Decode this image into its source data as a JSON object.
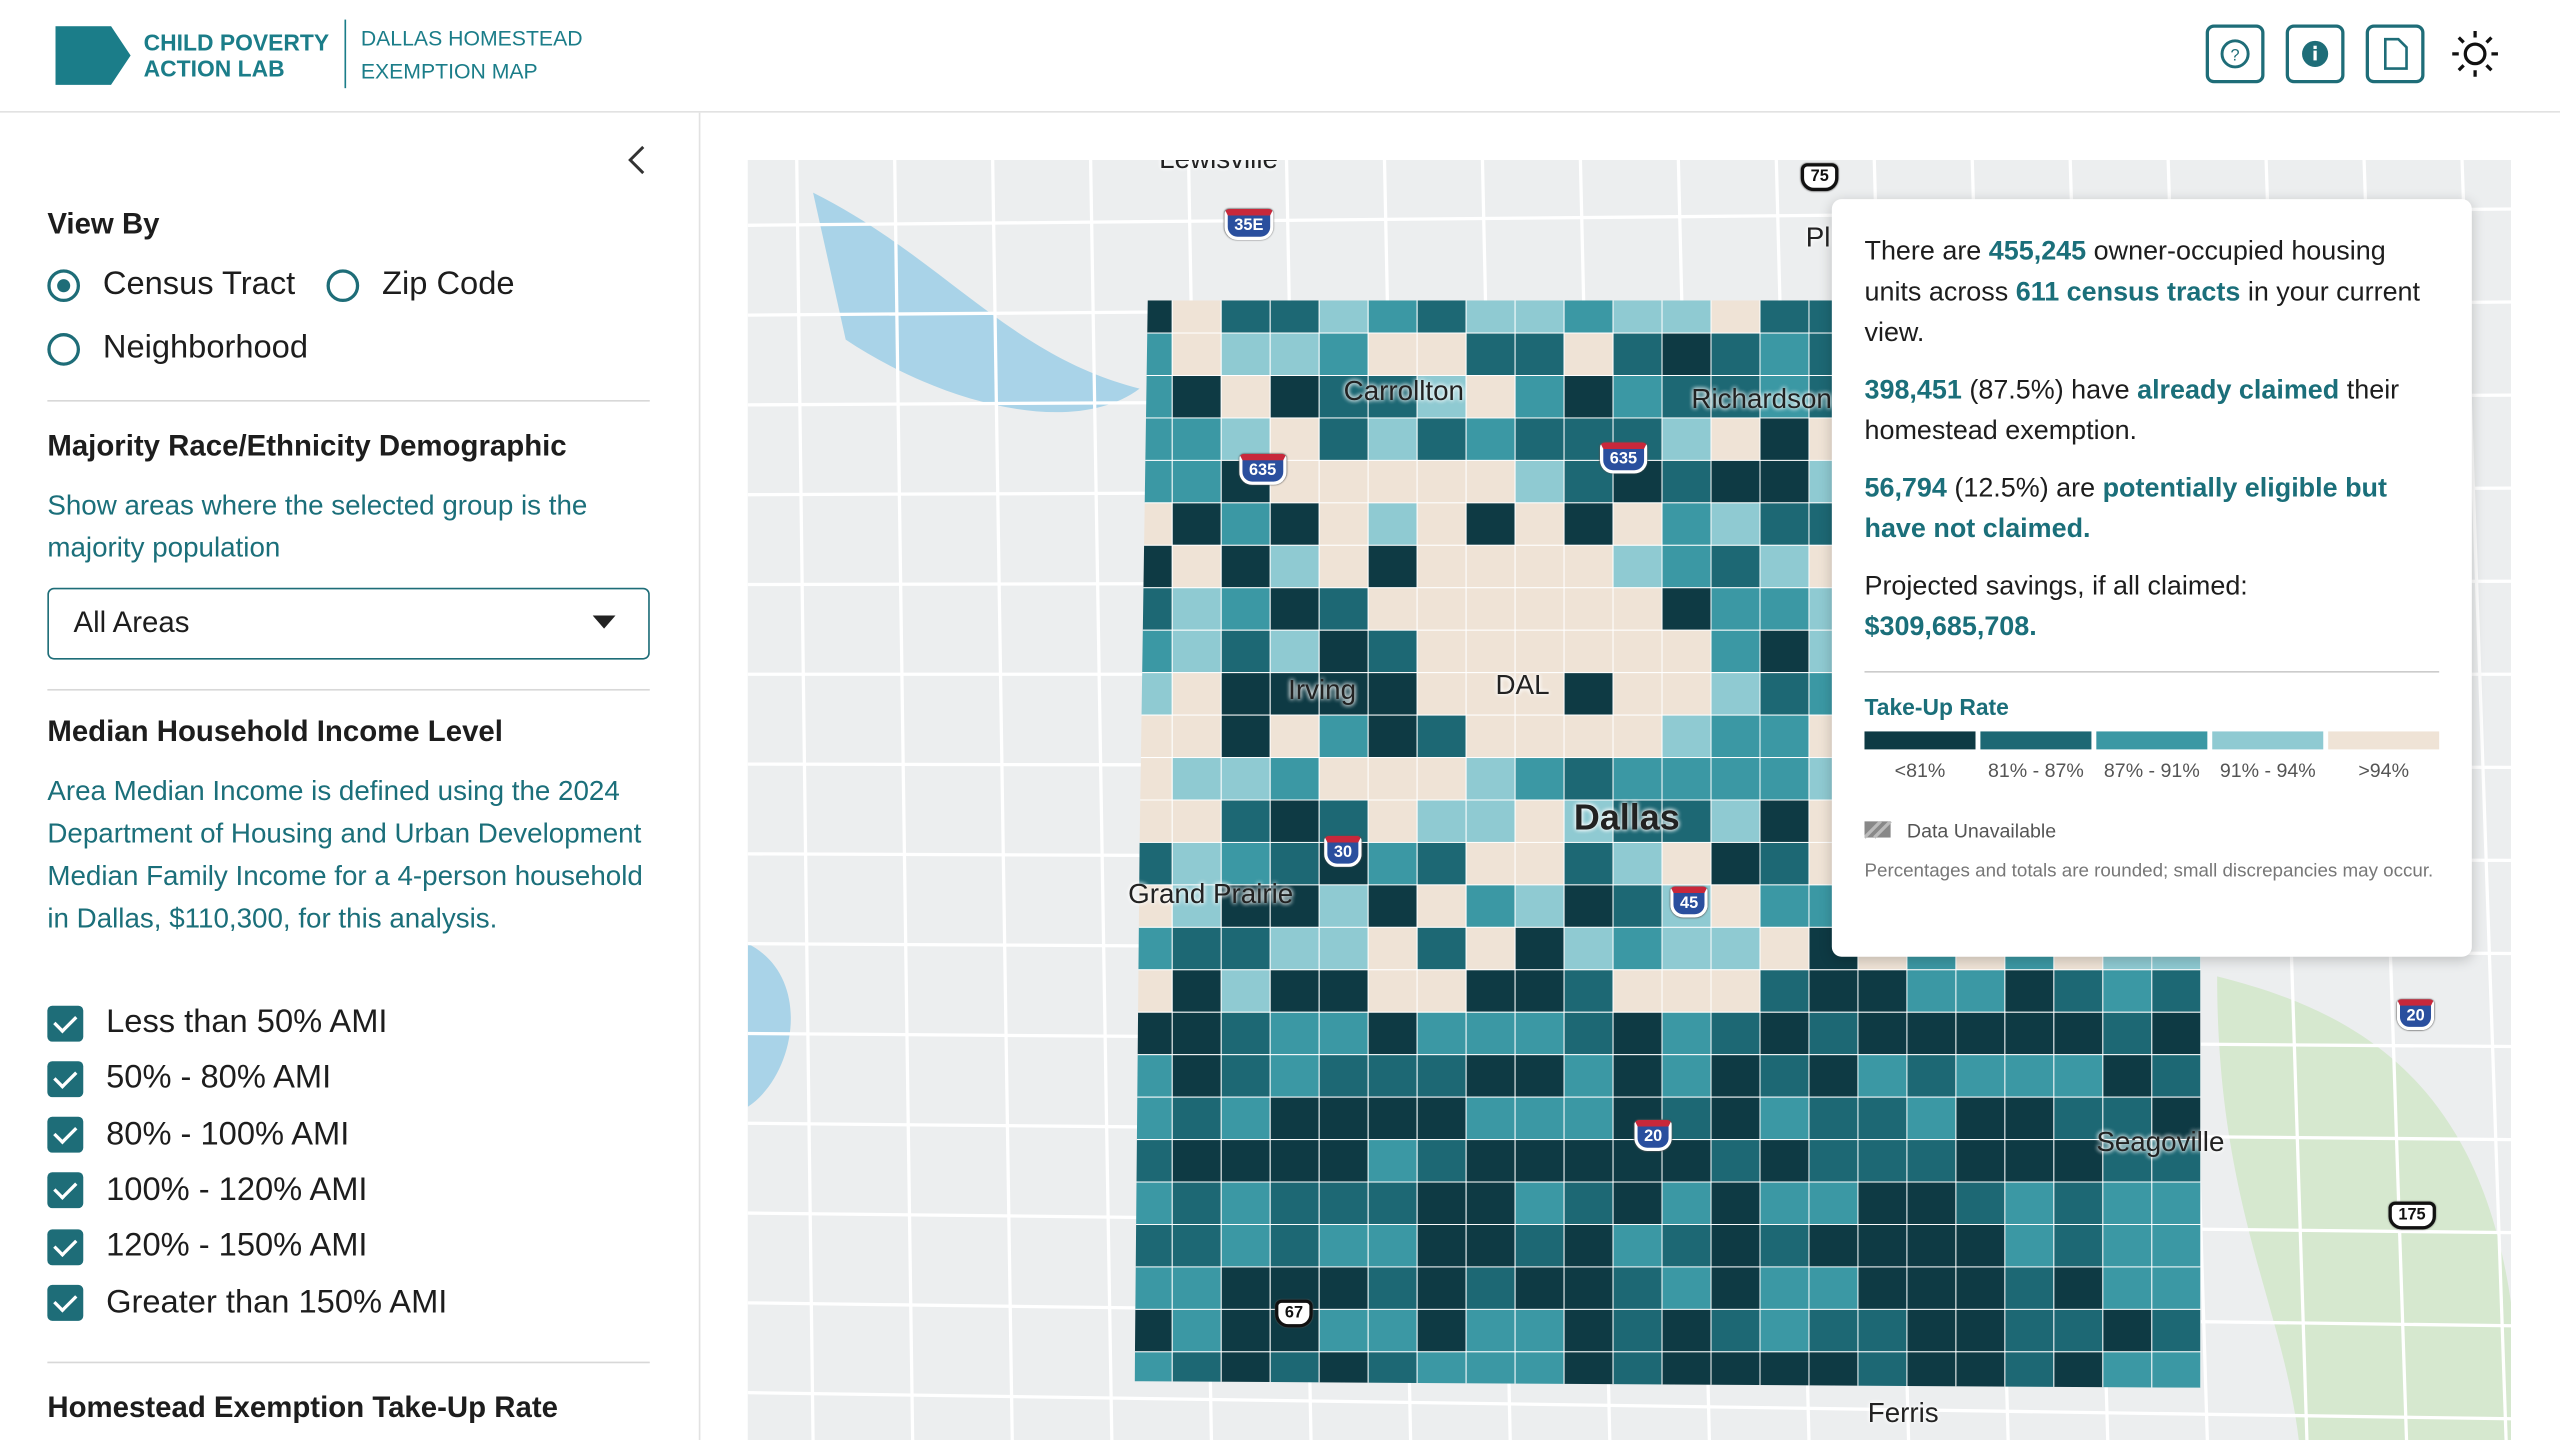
{
  "header": {
    "logo_line1": "CHILD POVERTY",
    "logo_line2": "ACTION LAB",
    "app_title_line1": "DALLAS HOMESTEAD",
    "app_title_line2": "EXEMPTION MAP"
  },
  "sidebar": {
    "view_by": {
      "title": "View By",
      "options": [
        "Census Tract",
        "Zip Code",
        "Neighborhood"
      ]
    },
    "race": {
      "title": "Majority Race/Ethnicity Demographic",
      "description": "Show areas where the selected group is the majority population",
      "dropdown": "All Areas"
    },
    "income": {
      "title": "Median Household Income Level",
      "description": "Area Median Income is defined using the 2024 Department of Housing and Urban Development Median Family Income for a 4-person household in Dallas, $110,300, for this analysis.",
      "options": [
        "Less than 50% AMI",
        "50% - 80% AMI",
        "80% - 100% AMI",
        "100% - 120% AMI",
        "120% - 150% AMI",
        "Greater than 150% AMI"
      ]
    },
    "takeup": {
      "title": "Homestead Exemption Take-Up Rate"
    }
  },
  "map": {
    "places": [
      "Lewisville",
      "Carrollton",
      "Richardson",
      "Irving",
      "DAL",
      "Dallas",
      "Grand Prairie",
      "Seagoville",
      "Ferris",
      "Pl"
    ],
    "highways": [
      "35E",
      "635",
      "635",
      "30",
      "45",
      "20",
      "67",
      "75",
      "20",
      "175"
    ]
  },
  "popup": {
    "p1": [
      "There are ",
      "455,245",
      " owner-occupied housing units across ",
      "611 census tracts",
      " in your current view."
    ],
    "p2": [
      "398,451",
      " (87.5%) have ",
      "already claimed",
      " their homestead exemption."
    ],
    "p3": [
      "56,794",
      " (12.5%) are ",
      "potentially eligible but have not claimed."
    ],
    "p4": [
      "Projected savings, if all claimed:",
      "$309,685,708."
    ],
    "legend": {
      "title": "Take-Up Rate",
      "bins": [
        {
          "label": "<81%",
          "color": "#0e3a44"
        },
        {
          "label": "81% - 87%",
          "color": "#1d6874"
        },
        {
          "label": "87% - 91%",
          "color": "#3b98a4"
        },
        {
          "label": "91% - 94%",
          "color": "#8fcad2"
        },
        {
          "label": ">94%",
          "color": "#efe3d6"
        }
      ],
      "unavailable": "Data Unavailable",
      "note": "Percentages and totals are rounded; small discrepancies may occur."
    }
  }
}
